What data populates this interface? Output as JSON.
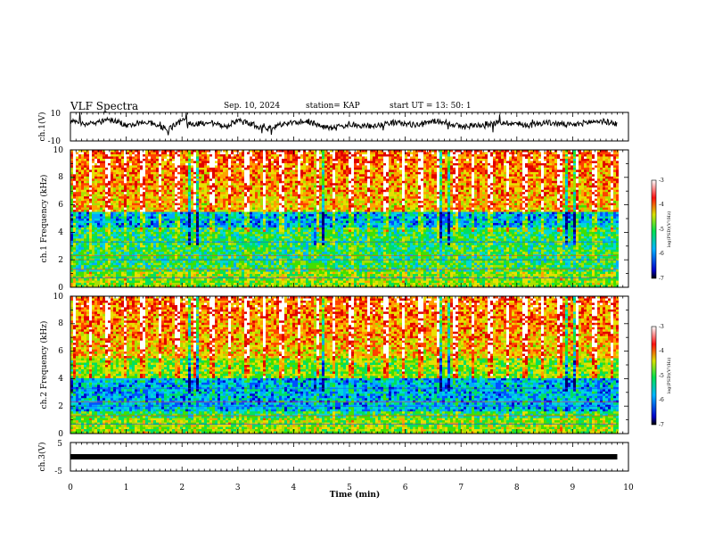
{
  "header": {
    "title": "VLF Spectra",
    "date": "Sep. 10, 2024",
    "station": "station= KAP",
    "start": "start  UT  =   13: 50: 1"
  },
  "chart_data": [
    {
      "type": "line",
      "name": "ch1-waveform",
      "ylabel": "ch.1(V)",
      "ylim": [
        -10,
        10
      ],
      "yticks": [
        "10",
        "-10"
      ],
      "xlim": [
        0,
        10
      ],
      "series": [
        {
          "x": [
            0,
            0.25,
            0.5,
            0.75,
            1.0,
            1.25,
            1.5,
            1.75,
            2.0,
            2.25,
            2.5,
            2.75,
            3.0,
            3.25,
            3.5,
            3.75,
            4.0,
            4.25,
            4.5,
            4.75,
            5.0,
            5.25,
            5.5,
            5.75,
            6.0,
            6.25,
            6.5,
            6.75,
            7.0,
            7.25,
            7.5,
            7.75,
            8.0,
            8.25,
            8.5,
            8.75,
            9.0,
            9.25,
            9.5,
            9.8
          ],
          "y": [
            4,
            2,
            3,
            5,
            1,
            3,
            2,
            -2,
            4,
            2,
            3,
            0,
            4,
            2,
            -2,
            1,
            3,
            4,
            0,
            -1,
            2,
            0,
            1,
            3,
            2,
            1,
            4,
            3,
            0,
            1,
            2,
            3,
            2,
            1,
            3,
            2,
            1,
            3,
            4,
            2
          ]
        }
      ]
    },
    {
      "type": "heatmap",
      "name": "ch1-spectrogram",
      "ylabel": "ch.1 Frequency (kHz)",
      "ylim": [
        0,
        10
      ],
      "yticks": [
        "0",
        "2",
        "4",
        "6",
        "8",
        "10"
      ],
      "xlim": [
        0,
        10.0
      ],
      "data_end_min": 9.8,
      "colorbar": {
        "label": "log(PSD)(V²/Hz)",
        "range": [
          -7,
          -3
        ],
        "ticks": [
          "-3",
          "-4",
          "-5",
          "-6",
          "-7"
        ]
      }
    },
    {
      "type": "heatmap",
      "name": "ch2-spectrogram",
      "ylabel": "ch.2 Frequency (kHz)",
      "ylim": [
        0,
        10
      ],
      "yticks": [
        "0",
        "2",
        "4",
        "6",
        "8",
        "10"
      ],
      "xlim": [
        0,
        10.0
      ],
      "data_end_min": 9.8,
      "colorbar": {
        "label": "log(PSD)(V²/Hz)",
        "range": [
          -7,
          -3
        ],
        "ticks": [
          "-3",
          "-4",
          "-5",
          "-6",
          "-7"
        ]
      }
    },
    {
      "type": "line",
      "name": "ch3-waveform",
      "ylabel": "ch.3(V)",
      "ylim": [
        -5,
        5
      ],
      "yticks": [
        "5",
        "-5"
      ],
      "xlim": [
        0,
        10
      ],
      "series": [
        {
          "x": [
            0,
            9.8
          ],
          "y": [
            0,
            0
          ]
        }
      ]
    }
  ],
  "xaxis": {
    "label": "Time (min)",
    "ticks": [
      "0",
      "1",
      "2",
      "3",
      "4",
      "5",
      "6",
      "7",
      "8",
      "9",
      "10"
    ]
  },
  "colors": {
    "axis": "#000000",
    "background": "#ffffff"
  }
}
